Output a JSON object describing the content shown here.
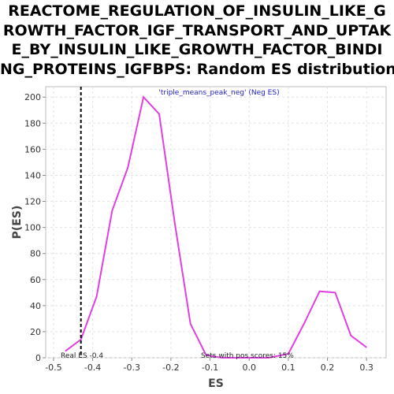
{
  "chart_data": {
    "type": "line",
    "title_lines": [
      "REACTOME_REGULATION_OF_INSULIN_LIKE_G",
      "ROWTH_FACTOR_IGF_TRANSPORT_AND_UPTAK",
      "E_BY_INSULIN_LIKE_GROWTH_FACTOR_BINDI",
      "NG_PROTEINS_IGFBPS: Random ES distribution"
    ],
    "xlabel": "ES",
    "ylabel": "P(ES)",
    "xlim": [
      -0.52,
      0.35
    ],
    "ylim": [
      0,
      208
    ],
    "xticks": [
      "-0.5",
      "-0.4",
      "-0.3",
      "-0.2",
      "-0.1",
      "0.0",
      "0.1",
      "0.2",
      "0.3"
    ],
    "yticks": [
      "0",
      "20",
      "40",
      "60",
      "80",
      "100",
      "120",
      "140",
      "160",
      "180",
      "200"
    ],
    "grid": true,
    "series": [
      {
        "name": "'triple_means_peak_neg' (Neg ES)",
        "color": "#e040e0",
        "x": [
          -0.47,
          -0.43,
          -0.39,
          -0.35,
          -0.31,
          -0.27,
          -0.23,
          -0.19,
          -0.15,
          -0.11,
          -0.07,
          -0.03,
          0.01,
          0.05,
          0.1,
          0.14,
          0.18,
          0.22,
          0.26,
          0.3
        ],
        "y": [
          5,
          14,
          47,
          113,
          146,
          200,
          187,
          103,
          26,
          2,
          0,
          0,
          0,
          0,
          3,
          26,
          51,
          50,
          17,
          8
        ]
      }
    ],
    "real_es": {
      "value": -0.43,
      "label": "Real ES -0.4"
    },
    "annotation": "Sets with pos scores: 15%"
  }
}
